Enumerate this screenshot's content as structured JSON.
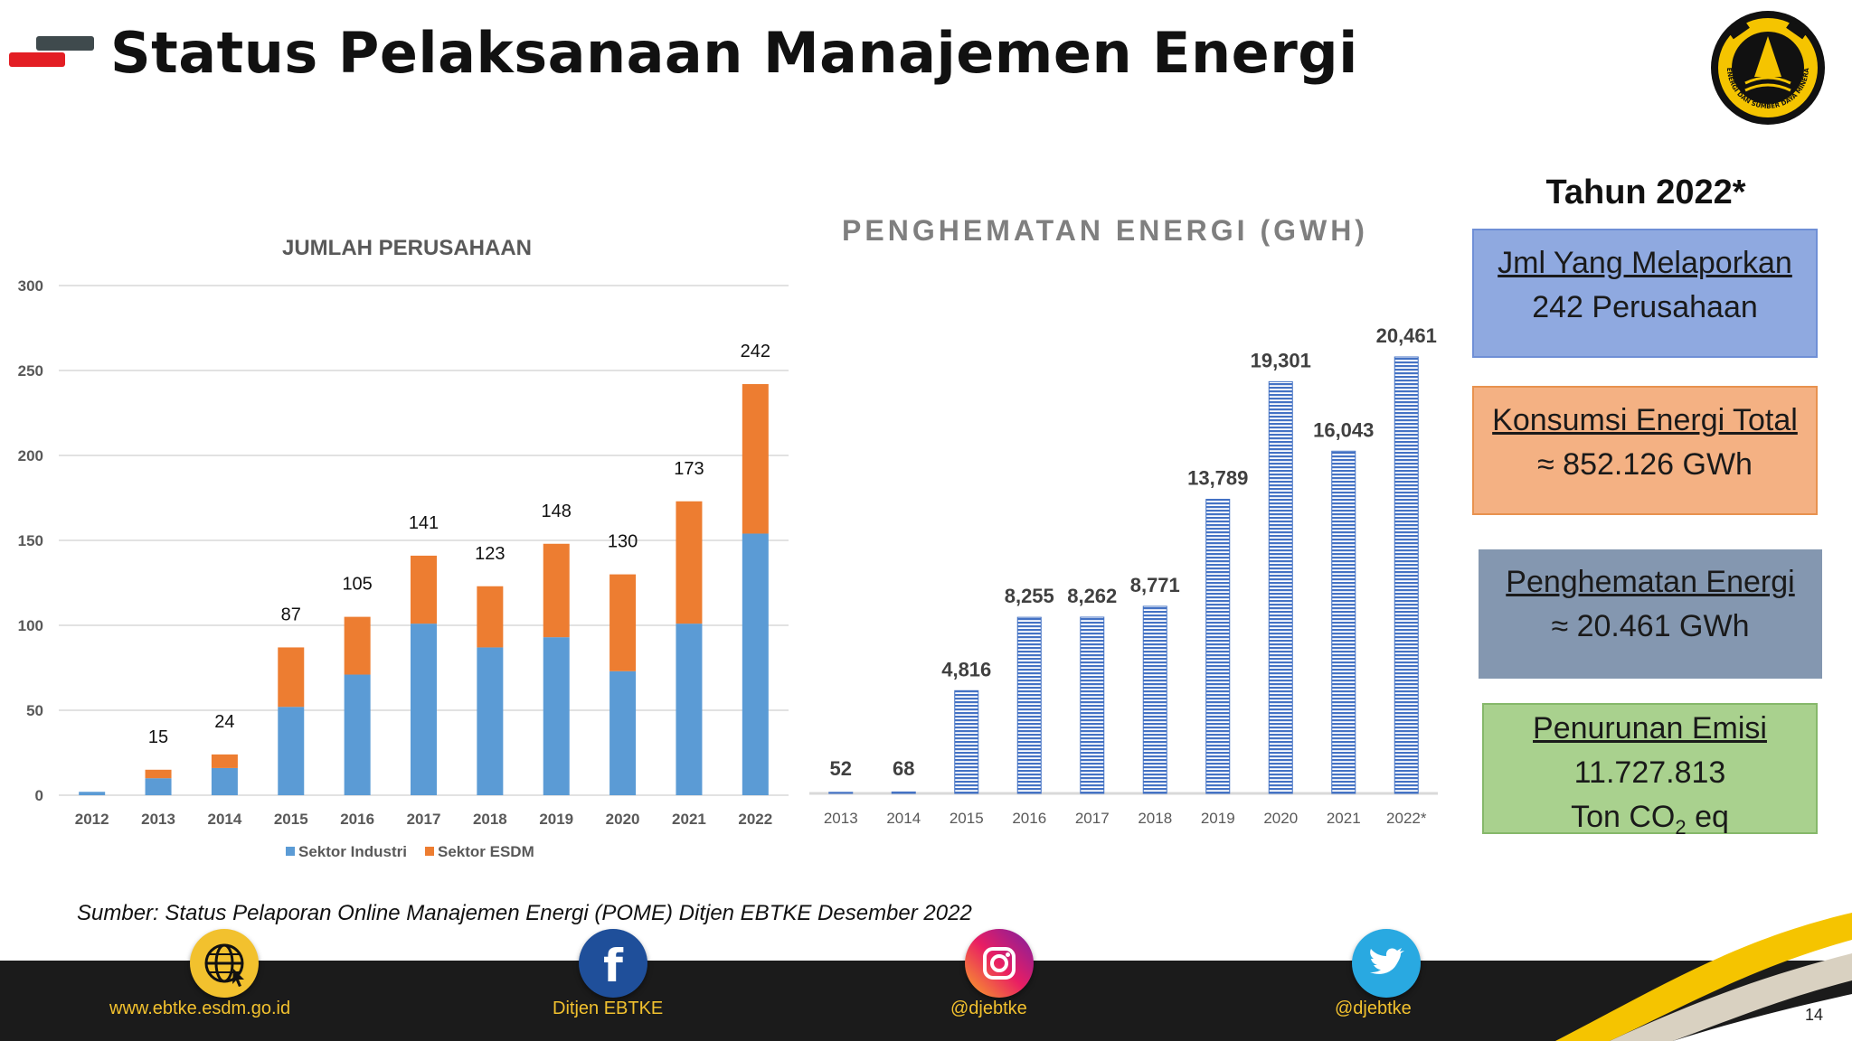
{
  "page": {
    "title": "Status Pelaksanaan Manajemen Energi",
    "page_number": "14",
    "source": "Sumber: Status Pelaporan Online Manajemen Energi (POME) Ditjen EBTKE Desember 2022"
  },
  "logo": {
    "ring_text": "ENERGI DAN SUMBER DAYA MINERAL"
  },
  "summary": {
    "title": "Tahun 2022*",
    "boxes": [
      {
        "heading": "Jml Yang Melaporkan",
        "value": "242 Perusahaan",
        "color": "#8fa9e0"
      },
      {
        "heading": "Konsumsi Energi Total",
        "value": "≈ 852.126 GWh",
        "color": "#f4b183"
      },
      {
        "heading": "Penghematan Energi",
        "value": "≈ 20.461 GWh",
        "color": "#8497b0"
      },
      {
        "heading": "Penurunan Emisi",
        "value": "11.727.813",
        "unit_prefix": "Ton CO",
        "unit_sub": "2",
        "unit_suffix": " eq",
        "color": "#a9d18e"
      }
    ]
  },
  "footer": {
    "links": [
      {
        "label": "www.ebtke.esdm.go.id",
        "icon": "globe-icon"
      },
      {
        "label": "Ditjen EBTKE",
        "icon": "facebook-icon"
      },
      {
        "label": "@djebtke",
        "icon": "instagram-icon"
      },
      {
        "label": "@djebtke",
        "icon": "twitter-icon"
      }
    ]
  },
  "chart_data": [
    {
      "type": "bar",
      "stacked": true,
      "title": "JUMLAH PERUSAHAAN",
      "categories": [
        "2012",
        "2013",
        "2014",
        "2015",
        "2016",
        "2017",
        "2018",
        "2019",
        "2020",
        "2021",
        "2022"
      ],
      "series": [
        {
          "name": "Sektor Industri",
          "color": "#5b9bd5",
          "values": [
            2,
            10,
            16,
            52,
            71,
            101,
            87,
            93,
            73,
            101,
            154
          ]
        },
        {
          "name": "Sektor ESDM",
          "color": "#ed7d31",
          "values": [
            0,
            5,
            8,
            35,
            34,
            40,
            36,
            55,
            57,
            72,
            88
          ]
        }
      ],
      "totals": [
        null,
        15,
        24,
        87,
        105,
        141,
        123,
        148,
        130,
        173,
        242
      ],
      "ylim": [
        0,
        300
      ],
      "yticks": [
        0,
        50,
        100,
        150,
        200,
        250,
        300
      ],
      "grid": true,
      "legend_position": "bottom"
    },
    {
      "type": "bar",
      "title": "PENGHEMATAN ENERGI (GWH)",
      "categories": [
        "2013",
        "2014",
        "2015",
        "2016",
        "2017",
        "2018",
        "2019",
        "2020",
        "2021",
        "2022*"
      ],
      "values": [
        52,
        68,
        4816,
        8255,
        8262,
        8771,
        13789,
        19301,
        16043,
        20461
      ],
      "labels": [
        "52",
        "68",
        "4,816",
        "8,255",
        "8,262",
        "8,771",
        "13,789",
        "19,301",
        "16,043",
        "20,461"
      ],
      "color": "#4472c4",
      "pattern": "horizontal stripes",
      "ylim": [
        0,
        20461
      ]
    }
  ]
}
